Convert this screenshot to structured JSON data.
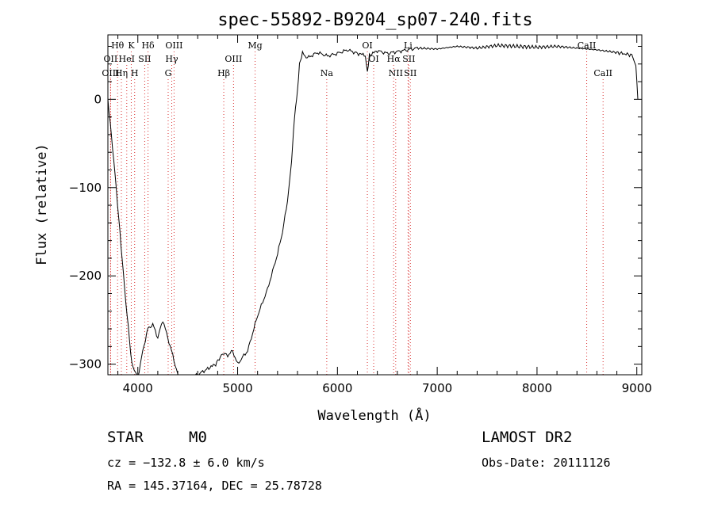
{
  "chart_data": {
    "type": "line",
    "title": "spec-55892-B9204_sp07-240.fits",
    "xlabel": "Wavelength (Å)",
    "ylabel": "Flux (relative)",
    "xlim": [
      3700,
      9050
    ],
    "ylim": [
      -312,
      73
    ],
    "x_ticks": [
      4000,
      5000,
      6000,
      7000,
      8000,
      9000
    ],
    "y_ticks": [
      0,
      -100,
      -200,
      -300
    ],
    "grid": false,
    "series": [
      {
        "x": [
          3700,
          3760,
          3820,
          3880,
          3940,
          4000,
          4050,
          4100,
          4150,
          4200,
          4250,
          4300,
          4350,
          4400,
          4450,
          4500,
          4600,
          4700,
          4780,
          4850,
          4900,
          4950,
          5000,
          5050,
          5100,
          5150,
          5200,
          5300,
          5400,
          5450,
          5500,
          5540,
          5570,
          5600,
          5620,
          5650,
          5700,
          5750,
          5800,
          5900,
          6000,
          6100,
          6200,
          6280,
          6300,
          6320,
          6400,
          6500,
          6600,
          6700,
          6800,
          7000,
          7200,
          7400,
          7600,
          7800,
          8000,
          8200,
          8400,
          8600,
          8800,
          8950,
          8990,
          9010
        ],
        "y": [
          0,
          -70,
          -150,
          -230,
          -300,
          -315,
          -285,
          -260,
          -255,
          -270,
          -250,
          -270,
          -290,
          -312,
          -320,
          -315,
          -312,
          -305,
          -300,
          -288,
          -290,
          -285,
          -300,
          -292,
          -285,
          -265,
          -245,
          -215,
          -175,
          -150,
          -115,
          -70,
          -20,
          10,
          40,
          52,
          47,
          50,
          53,
          49,
          52,
          56,
          52,
          50,
          30,
          50,
          55,
          52,
          54,
          56,
          58,
          57,
          60,
          58,
          61,
          60,
          59,
          60,
          58,
          56,
          53,
          50,
          40,
          0
        ]
      }
    ],
    "spectral_lines": [
      {
        "label": "Hθ",
        "x": 3797,
        "row": 1
      },
      {
        "label": "K",
        "x": 3934,
        "row": 1
      },
      {
        "label": "Hδ",
        "x": 4102,
        "row": 1
      },
      {
        "label": "OII",
        "x": 3727,
        "row": 2
      },
      {
        "label": "HeI",
        "x": 3889,
        "row": 2
      },
      {
        "label": "SII",
        "x": 4069,
        "row": 2
      },
      {
        "label": "OIII",
        "x": 4363,
        "row": 1
      },
      {
        "label": "Hγ",
        "x": 4340,
        "row": 2
      },
      {
        "label": "Mg",
        "x": 5175,
        "row": 1
      },
      {
        "label": "OIII",
        "x": 4959,
        "row": 2
      },
      {
        "label": "OI",
        "x": 6300,
        "row": 1
      },
      {
        "label": "Li",
        "x": 6708,
        "row": 1
      },
      {
        "label": "CaII",
        "x": 8498,
        "row": 1
      },
      {
        "label": "OI",
        "x": 6363,
        "row": 2
      },
      {
        "label": "Hα",
        "x": 6563,
        "row": 2
      },
      {
        "label": "SII",
        "x": 6716,
        "row": 2
      },
      {
        "label": "OIII",
        "x": 3727,
        "row": 3
      },
      {
        "label": "Hη",
        "x": 3835,
        "row": 3
      },
      {
        "label": "H",
        "x": 3968,
        "row": 3
      },
      {
        "label": "G",
        "x": 4304,
        "row": 3
      },
      {
        "label": "Hβ",
        "x": 4861,
        "row": 3
      },
      {
        "label": "Na",
        "x": 5893,
        "row": 3
      },
      {
        "label": "NII",
        "x": 6584,
        "row": 3
      },
      {
        "label": "SII",
        "x": 6731,
        "row": 3
      },
      {
        "label": "CaII",
        "x": 8662,
        "row": 3
      }
    ]
  },
  "info": {
    "class_label": "STAR",
    "subclass": "M0",
    "survey": "LAMOST DR2",
    "cz": "cz = −132.8 ± 6.0 km/s",
    "obs_date": "Obs-Date: 20111126",
    "coords": "RA = 145.37164, DEC =  25.78728"
  },
  "colors": {
    "spectrum": "#000000",
    "line_markers": "#d93030"
  }
}
